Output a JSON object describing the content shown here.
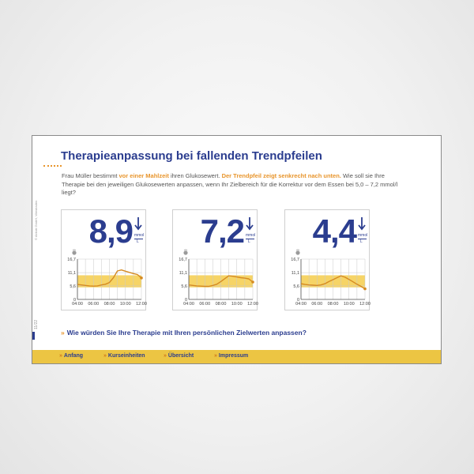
{
  "slide": {
    "title": "Therapieanpassung bei fallenden Trendpfeilen",
    "intro_parts": [
      "Frau Müller bestimmt ",
      "vor einer Mahlzeit",
      " ihren Glukosewert. ",
      "Der Trendpfeil zeigt senkrecht nach unten.",
      " Wie soll sie Ihre Therapie bei den jeweiligen Glukosewerten anpassen, wenn Ihr Zielbereich für die Korrektur vor dem Essen bei 5,0 – 7,2 mmol/l liegt?"
    ],
    "side_note": "© Abbott GmbH, Wiesbaden",
    "page_number": "11/22",
    "question": "Wie würden Sie Ihre Therapie mit Ihren persönlichen Zielwerten anpassen?",
    "question_marker": "»"
  },
  "panels": [
    {
      "value": "8,9",
      "unit_top": "mmol",
      "unit_bottom": "L",
      "trend_icon": "arrow-down-icon"
    },
    {
      "value": "7,2",
      "unit_top": "mmol",
      "unit_bottom": "L",
      "trend_icon": "arrow-down-icon"
    },
    {
      "value": "4,4",
      "unit_top": "mmol",
      "unit_bottom": "L",
      "trend_icon": "arrow-down-icon"
    }
  ],
  "chart_data": [
    {
      "type": "line",
      "y_ticks": [
        "16,7",
        "11,1",
        "5,6",
        "0"
      ],
      "x_ticks": [
        "04:00",
        "06:00",
        "08:00",
        "10:00",
        "12:00"
      ],
      "target_range": [
        5.0,
        10.0
      ],
      "ylim": [
        0,
        16.7
      ],
      "xlim": [
        4,
        12
      ],
      "series": [
        {
          "x": [
            4,
            4.5,
            5,
            5.5,
            6,
            6.5,
            7,
            7.5,
            8,
            8.5,
            9,
            9.5,
            10,
            10.5,
            11,
            11.5,
            12
          ],
          "y": [
            6.2,
            6.0,
            5.8,
            5.6,
            5.5,
            5.6,
            6.0,
            6.3,
            7.0,
            9.0,
            11.8,
            12.2,
            11.7,
            11.2,
            10.7,
            10.3,
            8.9
          ]
        }
      ]
    },
    {
      "type": "line",
      "y_ticks": [
        "16,7",
        "11,1",
        "5,6",
        "0"
      ],
      "x_ticks": [
        "04:00",
        "06:00",
        "08:00",
        "10:00",
        "12:00"
      ],
      "target_range": [
        5.0,
        10.0
      ],
      "ylim": [
        0,
        16.7
      ],
      "xlim": [
        4,
        12
      ],
      "series": [
        {
          "x": [
            4,
            4.5,
            5,
            5.5,
            6,
            6.5,
            7,
            7.5,
            8,
            8.5,
            9,
            9.5,
            10,
            10.5,
            11,
            11.5,
            12
          ],
          "y": [
            6.0,
            5.8,
            5.6,
            5.5,
            5.4,
            5.4,
            5.8,
            6.3,
            7.4,
            8.6,
            9.8,
            9.6,
            9.3,
            9.0,
            8.8,
            8.5,
            7.2
          ]
        }
      ]
    },
    {
      "type": "line",
      "y_ticks": [
        "16,7",
        "11,1",
        "5,6",
        "0"
      ],
      "x_ticks": [
        "04:00",
        "06:00",
        "08:00",
        "10:00",
        "12:00"
      ],
      "target_range": [
        5.0,
        10.0
      ],
      "ylim": [
        0,
        16.7
      ],
      "xlim": [
        4,
        12
      ],
      "series": [
        {
          "x": [
            4,
            4.5,
            5,
            5.5,
            6,
            6.5,
            7,
            7.5,
            8,
            8.5,
            9,
            9.5,
            10,
            10.5,
            11,
            11.5,
            12
          ],
          "y": [
            6.5,
            6.2,
            6.0,
            5.9,
            5.8,
            6.0,
            6.5,
            7.4,
            8.2,
            9.0,
            9.8,
            9.2,
            8.3,
            7.3,
            6.3,
            5.4,
            4.4
          ]
        }
      ]
    }
  ],
  "nav": [
    {
      "label": "Anfang",
      "marker": "»"
    },
    {
      "label": "Kurseinheiten",
      "marker": "»"
    },
    {
      "label": "Übersicht",
      "marker": "»"
    },
    {
      "label": "Impressum",
      "marker": "»"
    }
  ],
  "colors": {
    "navy": "#2b3d8f",
    "orange": "#e8952c",
    "bar_yellow": "#ecc543",
    "range_fill": "#f6d466"
  }
}
